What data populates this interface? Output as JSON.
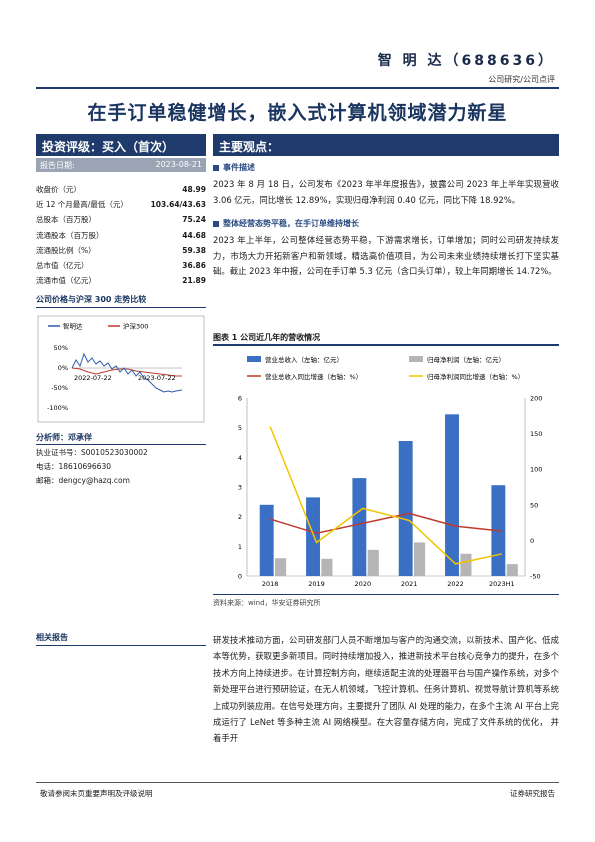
{
  "header": {
    "company": "智 明 达（688636）",
    "subtitle": "公司研究/公司点评"
  },
  "title": "在手订单稳健增长，嵌入式计算机领域潜力新星",
  "rating": {
    "label": "投资评级：买入（首次）",
    "date_label": "报告日期:",
    "date_value": "2023-08-21"
  },
  "metrics": [
    {
      "label": "收盘价（元）",
      "value": "48.99"
    },
    {
      "label": "近 12 个月最高/最低（元）",
      "value": "103.64/43.63"
    },
    {
      "label": "总股本（百万股）",
      "value": "75.24"
    },
    {
      "label": "流通股本（百万股）",
      "value": "44.68"
    },
    {
      "label": "流通股比例（%）",
      "value": "59.38"
    },
    {
      "label": "总市值（亿元）",
      "value": "36.86"
    },
    {
      "label": "流通市值（亿元）",
      "value": "21.89"
    }
  ],
  "stock_chart_title": "公司价格与沪深 300 走势比较",
  "stock_chart": {
    "legend": [
      "智明达",
      "沪深300"
    ],
    "y_ticks": [
      "50%",
      "0%",
      "-50%",
      "-100%"
    ],
    "x_ticks": [
      "2022-07-22",
      "2023-07-22"
    ],
    "colors": {
      "company": "#2f5cb0",
      "index": "#c0392b"
    }
  },
  "analyst": {
    "label": "分析师：邓承佯",
    "cert": "执业证书号：S0010523030002",
    "phone": "电话：18610696630",
    "email": "邮箱：dengcy@hazq.com"
  },
  "related_label": "相关报告",
  "views_title": "主要观点：",
  "sections": [
    {
      "heading": "事件描述",
      "text": "2023 年 8 月 18 日，公司发布《2023 年半年度报告》，披露公司 2023 年上半年实现营收 3.06 亿元，同比增长 12.89%，实现归母净利润 0.40 亿元，同比下降 18.92%。"
    },
    {
      "heading": "整体经营态势平稳，在手订单维持增长",
      "text": "2023 年上半年，公司整体经营态势平稳，下游需求增长，订单增加；同时公司研发持续发力，市场大力开拓新客户和新领域，精选高价值项目，为公司未来业绩持续增长打下坚实基础。截止 2023 年中报，公司在手订单 5.3 亿元（含口头订单），较上年同期增长 14.72%。"
    }
  ],
  "figure": {
    "title": "图表 1 公司近几年的营收情况",
    "source": "资料来源：wind，华安证券研究所",
    "legend": [
      "营业总收入（左轴：亿元）",
      "归母净利润（左轴：亿元）",
      "营业总收入同比增速（右轴：%）",
      "归母净利润同比增速（右轴：%）"
    ]
  },
  "chart_data": {
    "type": "bar",
    "categories": [
      "2018",
      "2019",
      "2020",
      "2021",
      "2022",
      "2023H1"
    ],
    "series": [
      {
        "name": "营业总收入（左轴：亿元）",
        "type": "bar",
        "axis": "left",
        "values": [
          2.4,
          2.65,
          3.3,
          4.55,
          5.45,
          3.06
        ],
        "color": "#3a6fc4"
      },
      {
        "name": "归母净利润（左轴：亿元）",
        "type": "bar",
        "axis": "left",
        "values": [
          0.6,
          0.58,
          0.88,
          1.13,
          0.75,
          0.4
        ],
        "color": "#b5b5b5"
      },
      {
        "name": "营业总收入同比增速（右轴：%）",
        "type": "line",
        "axis": "right",
        "values": [
          30,
          10,
          24,
          38,
          20,
          13
        ],
        "color": "#c0392b"
      },
      {
        "name": "归母净利润同比增速（右轴：%）",
        "type": "line",
        "axis": "right",
        "values": [
          160,
          -3,
          45,
          28,
          -33,
          -19
        ],
        "color": "#f2c500"
      }
    ],
    "ylim_left": [
      0,
      6
    ],
    "ylim_right": [
      -50,
      200
    ],
    "yticks_left": [
      "0",
      "1",
      "2",
      "3",
      "4",
      "5",
      "6"
    ],
    "yticks_right": [
      "-50",
      "0",
      "50",
      "100",
      "150",
      "200"
    ],
    "grid": false,
    "legend_position": "top"
  },
  "body_text": "研发技术推动方面，公司研发部门人员不断增加与客户的沟通交流，以新技术、国产化、低成本等优势，获取更多新项目。同时持续增加投入，推进新技术平台核心竞争力的提升，在多个技术方向上持续进步。在计算控制方向，继续适配主流的处理器平台与国产操作系统，对多个新处理平台进行预研验证，在无人机领域，飞控计算机、任务计算机、视觉导航计算机等系统上成功列装应用。在信号处理方向，主要提升了团队 AI 处理的能力，在多个主流 AI 平台上完成运行了 LeNet 等多种主流 AI 网络模型。在大容量存储方向，完成了文件系统的优化，  并着手开",
  "footer": {
    "left": "敬请参阅末页重要声明及评级说明",
    "right": "证券研究报告"
  }
}
